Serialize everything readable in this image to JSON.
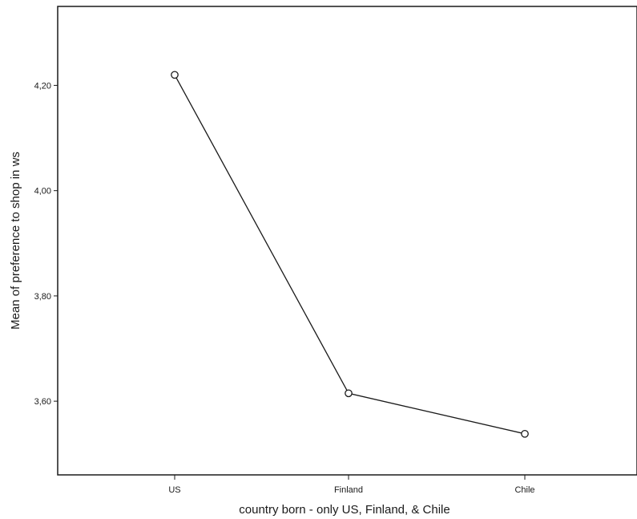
{
  "chart_data": {
    "type": "line",
    "title": "",
    "xlabel": "country born - only US, Finland, & Chile",
    "ylabel": "Mean of preference to shop in ws",
    "categories": [
      "US",
      "Finland",
      "Chile"
    ],
    "series": [
      {
        "values": [
          4.22,
          3.615,
          3.538
        ]
      }
    ],
    "ylim": [
      3.46,
      4.35
    ],
    "yticks": [
      3.6,
      3.8,
      4.0,
      4.2
    ],
    "ytick_labels": [
      "3,60",
      "3,80",
      "4,00",
      "4,20"
    ],
    "grid": false,
    "marker": "open-circle",
    "line_color": "#1a1a1a"
  }
}
